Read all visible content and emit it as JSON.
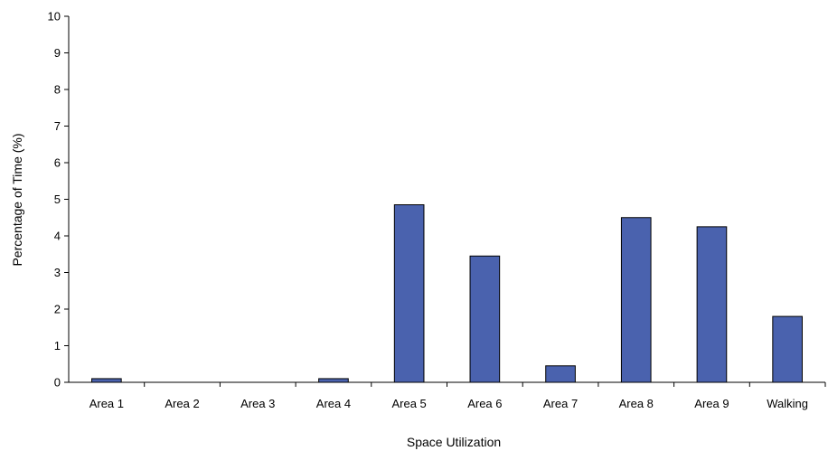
{
  "chart_data": {
    "type": "bar",
    "title": "",
    "xlabel": "Space Utilization",
    "ylabel": "Percentage of Time (%)",
    "ylim": [
      0,
      10
    ],
    "yticks": [
      "0",
      "1",
      "2",
      "3",
      "4",
      "5",
      "6",
      "7",
      "8",
      "9",
      "10"
    ],
    "categories": [
      "Area 1",
      "Area 2",
      "Area 3",
      "Area 4",
      "Area 5",
      "Area 6",
      "Area 7",
      "Area 8",
      "Area 9",
      "Walking"
    ],
    "values": [
      0.1,
      0,
      0,
      0.1,
      4.85,
      3.45,
      0.45,
      4.5,
      4.25,
      1.8
    ],
    "grid": false,
    "legend": "none",
    "bar_color": "#4a62ae",
    "bar_outline": "#000000"
  }
}
